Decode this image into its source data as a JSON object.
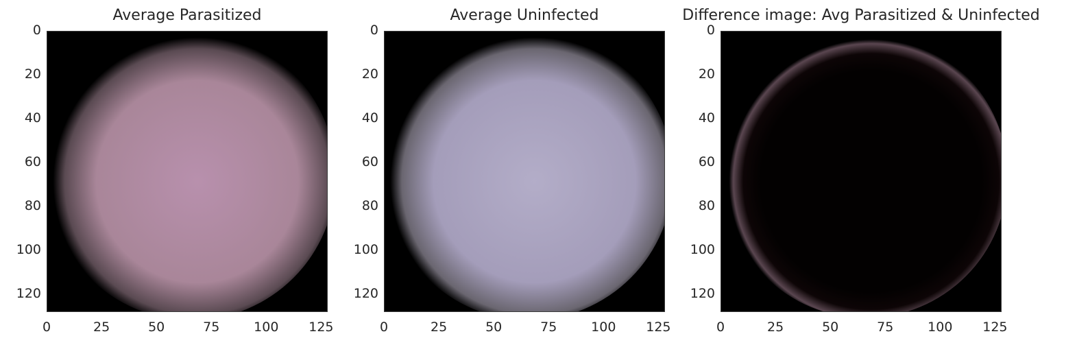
{
  "chart_data": [
    {
      "type": "heatmap",
      "title": "Average Parasitized",
      "xlabel": "",
      "ylabel": "",
      "xlim": [
        0,
        128
      ],
      "ylim": [
        128,
        0
      ],
      "x_ticks": [
        0,
        25,
        50,
        75,
        100,
        125
      ],
      "y_ticks": [
        0,
        20,
        40,
        60,
        80,
        100,
        120
      ],
      "grid": false,
      "cell_color": "#b48ea8",
      "edge_color": "#1a1517",
      "colors": {
        "center": "#b890ad",
        "mid": "#a98699",
        "rim": "#5a4a52",
        "background": "#000000"
      }
    },
    {
      "type": "heatmap",
      "title": "Average Uninfected",
      "xlabel": "",
      "ylabel": "",
      "xlim": [
        0,
        128
      ],
      "ylim": [
        128,
        0
      ],
      "x_ticks": [
        0,
        25,
        50,
        75,
        100,
        125
      ],
      "y_ticks": [
        0,
        20,
        40,
        60,
        80,
        100,
        120
      ],
      "grid": false,
      "cell_color": "#aba3c0",
      "edge_color": "#1a1a1c",
      "colors": {
        "center": "#b3adc8",
        "mid": "#a49dba",
        "rim": "#6a6670",
        "background": "#000000"
      }
    },
    {
      "type": "heatmap",
      "title": "Difference image: Avg Parasitized & Uninfected",
      "xlabel": "",
      "ylabel": "",
      "xlim": [
        0,
        128
      ],
      "ylim": [
        128,
        0
      ],
      "x_ticks": [
        0,
        25,
        50,
        75,
        100,
        125
      ],
      "y_ticks": [
        0,
        20,
        40,
        60,
        80,
        100,
        120
      ],
      "grid": false,
      "cell_color": "#050202",
      "edge_color": "#4a3a40",
      "colors": {
        "center": "#030101",
        "mid": "#0d0506",
        "rim": "#5a4650",
        "background": "#000000"
      }
    }
  ]
}
